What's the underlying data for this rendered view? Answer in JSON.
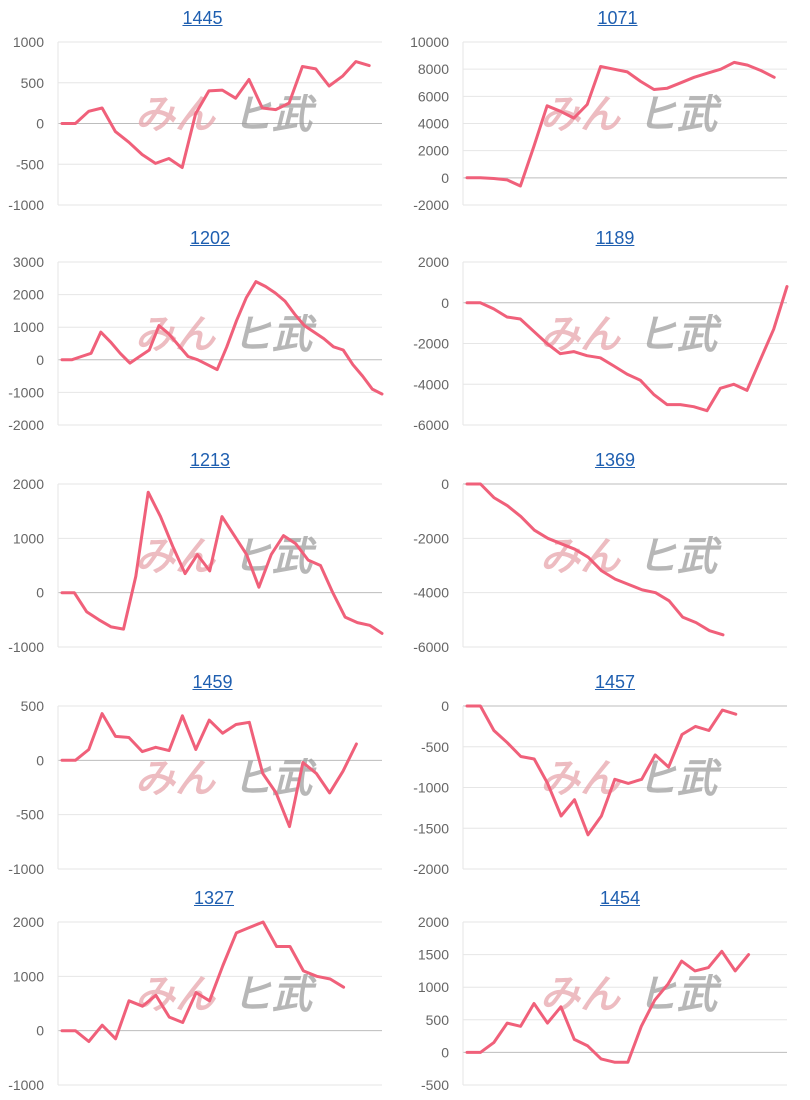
{
  "chart_data": [
    {
      "type": "line",
      "title": "1445",
      "ylim": [
        -1000,
        1000
      ],
      "yticks": [
        1000,
        500,
        0,
        -500,
        -1000
      ],
      "values": [
        0,
        0,
        150,
        190,
        -100,
        -230,
        -380,
        -490,
        -430,
        -540,
        120,
        400,
        410,
        310,
        540,
        190,
        170,
        250,
        700,
        670,
        460,
        580,
        760,
        710
      ]
    },
    {
      "type": "line",
      "title": "1071",
      "ylim": [
        -2000,
        10000
      ],
      "yticks": [
        10000,
        8000,
        6000,
        4000,
        2000,
        0,
        -2000
      ],
      "values": [
        0,
        0,
        -50,
        -150,
        -600,
        2300,
        5300,
        4900,
        4400,
        5400,
        8200,
        8000,
        7800,
        7100,
        6500,
        6600,
        7000,
        7400,
        7700,
        8000,
        8500,
        8300,
        7900,
        7400
      ]
    },
    {
      "type": "line",
      "title": "1202",
      "ylim": [
        -2000,
        3000
      ],
      "yticks": [
        3000,
        2000,
        1000,
        0,
        -1000,
        -2000
      ],
      "values": [
        0,
        0,
        100,
        200,
        850,
        550,
        200,
        -100,
        100,
        300,
        1050,
        800,
        450,
        100,
        0,
        -150,
        -300,
        400,
        1200,
        1900,
        2400,
        2250,
        2050,
        1800,
        1400,
        1050,
        850,
        650,
        400,
        300,
        -150,
        -500,
        -900,
        -1050
      ]
    },
    {
      "type": "line",
      "title": "1189",
      "ylim": [
        -6000,
        2000
      ],
      "yticks": [
        2000,
        0,
        -2000,
        -4000,
        -6000
      ],
      "values": [
        0,
        0,
        -300,
        -700,
        -800,
        -1400,
        -2000,
        -2500,
        -2400,
        -2600,
        -2700,
        -3100,
        -3500,
        -3800,
        -4500,
        -5000,
        -5000,
        -5100,
        -5300,
        -4200,
        -4000,
        -4300,
        -2800,
        -1300,
        800
      ]
    },
    {
      "type": "line",
      "title": "1213",
      "ylim": [
        -1000,
        2000
      ],
      "yticks": [
        2000,
        1000,
        0,
        -1000
      ],
      "values": [
        0,
        0,
        -350,
        -500,
        -630,
        -670,
        300,
        1850,
        1400,
        850,
        350,
        700,
        400,
        1400,
        1050,
        700,
        100,
        700,
        1050,
        900,
        600,
        500,
        0,
        -450,
        -550,
        -600,
        -750
      ]
    },
    {
      "type": "line",
      "title": "1369",
      "ylim": [
        -6000,
        0
      ],
      "yticks": [
        0,
        -2000,
        -4000,
        -6000
      ],
      "values": [
        0,
        0,
        -500,
        -800,
        -1200,
        -1700,
        -2000,
        -2200,
        -2400,
        -2700,
        -3200,
        -3500,
        -3700,
        -3900,
        -4000,
        -4300,
        -4900,
        -5100,
        -5400,
        -5550
      ]
    },
    {
      "type": "line",
      "title": "1459",
      "ylim": [
        -1000,
        500
      ],
      "yticks": [
        500,
        0,
        -500,
        -1000
      ],
      "values": [
        0,
        0,
        100,
        430,
        220,
        210,
        80,
        120,
        90,
        410,
        100,
        370,
        250,
        330,
        350,
        -120,
        -300,
        -610,
        -20,
        -120,
        -300,
        -100,
        150
      ]
    },
    {
      "type": "line",
      "title": "1457",
      "ylim": [
        -2000,
        0
      ],
      "yticks": [
        0,
        -500,
        -1000,
        -1500,
        -2000
      ],
      "values": [
        0,
        0,
        -300,
        -450,
        -620,
        -650,
        -950,
        -1350,
        -1150,
        -1580,
        -1350,
        -900,
        -950,
        -900,
        -600,
        -750,
        -350,
        -250,
        -300,
        -50,
        -100
      ]
    },
    {
      "type": "line",
      "title": "1327",
      "ylim": [
        -1000,
        2000
      ],
      "yticks": [
        2000,
        1000,
        0,
        -1000
      ],
      "values": [
        0,
        0,
        -200,
        100,
        -150,
        550,
        450,
        650,
        250,
        150,
        700,
        550,
        1200,
        1800,
        1900,
        2000,
        1550,
        1550,
        1100,
        1000,
        950,
        800
      ]
    },
    {
      "type": "line",
      "title": "1454",
      "ylim": [
        -500,
        2000
      ],
      "yticks": [
        2000,
        1500,
        1000,
        500,
        0,
        -500
      ],
      "values": [
        0,
        0,
        150,
        450,
        400,
        750,
        450,
        700,
        200,
        100,
        -100,
        -150,
        -150,
        400,
        800,
        1050,
        1400,
        1250,
        1300,
        1550,
        1250,
        1500
      ]
    }
  ],
  "watermark": {
    "part1": "みん",
    "part2": "ヒ武"
  },
  "colors": {
    "line": "#f0607a",
    "grid": "#e6e6e6",
    "axis": "#bdbdbd",
    "tick": "#666666",
    "title": "#1f5fb0"
  }
}
